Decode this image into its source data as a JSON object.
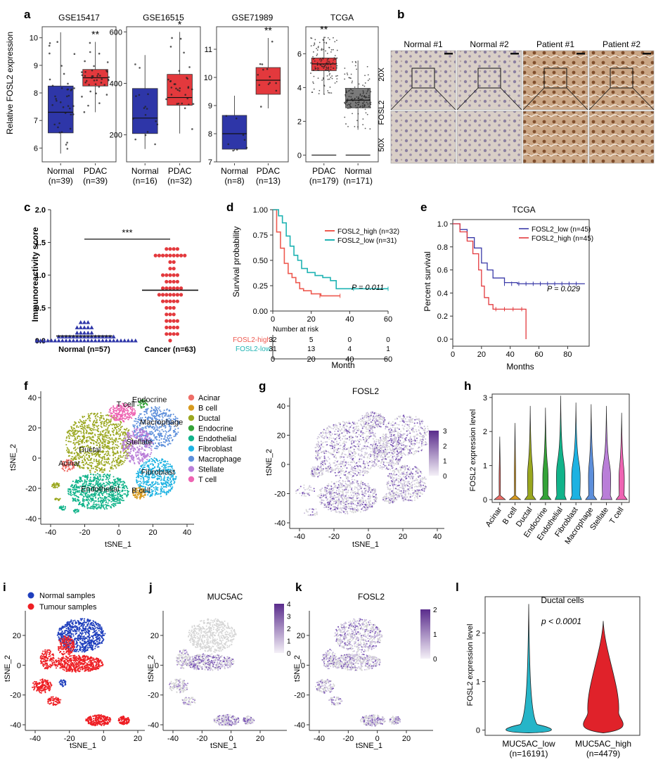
{
  "panel_labels": [
    "a",
    "b",
    "c",
    "d",
    "e",
    "f",
    "g",
    "h",
    "i",
    "j",
    "k",
    "l"
  ],
  "chart_data": [
    {
      "id": "a1",
      "type": "box",
      "title": "GSE15417",
      "ylabel": "Relative FOSL2 expression",
      "ylim": [
        5.5,
        10.4
      ],
      "yticks": [
        6,
        7,
        8,
        9,
        10
      ],
      "categories": [
        "Normal",
        "PDAC"
      ],
      "n_labels": [
        "(n=39)",
        "(n=39)"
      ],
      "colors": [
        "#2e36a8",
        "#e3393d"
      ],
      "boxes": [
        {
          "min": 5.8,
          "q1": 6.55,
          "median": 7.3,
          "q3": 8.25,
          "max": 10.2
        },
        {
          "min": 7.3,
          "q1": 8.25,
          "median": 8.55,
          "q3": 8.85,
          "max": 9.85
        }
      ],
      "significance": [
        "",
        "**"
      ]
    },
    {
      "id": "a2",
      "type": "box",
      "title": "GSE16515",
      "ylim": [
        95,
        620
      ],
      "yticks": [
        200,
        400,
        600
      ],
      "categories": [
        "Normal",
        "PDAC"
      ],
      "n_labels": [
        "(n=16)",
        "(n=32)"
      ],
      "colors": [
        "#2e36a8",
        "#e3393d"
      ],
      "boxes": [
        {
          "min": 145,
          "q1": 205,
          "median": 265,
          "q3": 380,
          "max": 510
        },
        {
          "min": 205,
          "q1": 315,
          "median": 345,
          "q3": 435,
          "max": 600
        }
      ],
      "significance": [
        "",
        "*"
      ]
    },
    {
      "id": "a3",
      "type": "box",
      "title": "GSE71989",
      "ylim": [
        7,
        11.8
      ],
      "yticks": [
        7,
        8,
        9,
        10,
        11
      ],
      "categories": [
        "Normal",
        "PDAC"
      ],
      "n_labels": [
        "(n=8)",
        "(n=13)"
      ],
      "colors": [
        "#2e36a8",
        "#e3393d"
      ],
      "boxes": [
        {
          "min": 7.4,
          "q1": 7.45,
          "median": 8.0,
          "q3": 8.65,
          "max": 9.35
        },
        {
          "min": 8.9,
          "q1": 9.4,
          "median": 9.9,
          "q3": 10.35,
          "max": 11.4
        }
      ],
      "significance": [
        "",
        "**"
      ]
    },
    {
      "id": "a4",
      "type": "box",
      "title": "TCGA",
      "ylim": [
        -0.4,
        7.6
      ],
      "yticks": [
        0,
        2,
        4,
        6
      ],
      "categories": [
        "PDAC",
        "Normal"
      ],
      "n_labels": [
        "(n=179)",
        "(n=171)"
      ],
      "colors": [
        "#e3393d",
        "#7a7a7a"
      ],
      "boxes": [
        {
          "min": 3.6,
          "q1": 5.0,
          "median": 5.4,
          "q3": 5.75,
          "max": 7.0
        },
        {
          "min": 1.5,
          "q1": 2.8,
          "median": 3.25,
          "q3": 3.95,
          "max": 5.6
        }
      ],
      "significance": [
        "**",
        ""
      ]
    },
    {
      "id": "b",
      "type": "image-grid",
      "columns": [
        "Normal #1",
        "Normal #2",
        "Patient #1",
        "Patient #2"
      ],
      "row_labels": [
        "20X",
        "FOSL2",
        "50X"
      ]
    },
    {
      "id": "c",
      "type": "scatter",
      "ylabel": "Immunoreactivity score",
      "ylim": [
        0,
        2.0
      ],
      "yticks": [
        0,
        0.5,
        1.0,
        1.5,
        2.0
      ],
      "categories": [
        "Normal (n=57)",
        "Cancer (n=63)"
      ],
      "colors": [
        "#2e36a8",
        "#e3393d"
      ],
      "means": [
        0.07,
        0.77
      ],
      "significance": "***"
    },
    {
      "id": "d",
      "type": "line",
      "ylabel": "Survival probability",
      "xlabel": "Month",
      "xlim": [
        0,
        60
      ],
      "xticks": [
        0,
        20,
        40,
        60
      ],
      "ylim": [
        0,
        1.0
      ],
      "yticks": [
        "0.00",
        "0.25",
        "0.50",
        "0.75",
        "1.00"
      ],
      "series": [
        {
          "name": "FOSL2_high (n=32)",
          "color": "#ee5a50",
          "x": [
            0,
            2,
            4,
            6,
            8,
            10,
            12,
            14,
            16,
            20,
            25,
            35
          ],
          "y": [
            1.0,
            0.78,
            0.62,
            0.47,
            0.37,
            0.33,
            0.28,
            0.22,
            0.2,
            0.17,
            0.15,
            0.15
          ]
        },
        {
          "name": "FOSL2_low (n=31)",
          "color": "#1fb3b3",
          "x": [
            0,
            3,
            5,
            7,
            9,
            11,
            13,
            15,
            18,
            22,
            26,
            30,
            33,
            40,
            60
          ],
          "y": [
            1.0,
            0.94,
            0.87,
            0.74,
            0.64,
            0.55,
            0.5,
            0.42,
            0.38,
            0.35,
            0.33,
            0.3,
            0.22,
            0.22,
            0.22
          ]
        }
      ],
      "pvalue": "P = 0.011",
      "risk_table": {
        "header": "Number at risk",
        "rows": [
          {
            "name": "FOSL2-high",
            "color": "#ee5a50",
            "values": [
              "32",
              "5",
              "0",
              "0"
            ]
          },
          {
            "name": "FOSL2-low",
            "color": "#1fb3b3",
            "values": [
              "31",
              "13",
              "4",
              "1"
            ]
          }
        ]
      }
    },
    {
      "id": "e",
      "type": "line",
      "title": "TCGA",
      "ylabel": "Percent survival",
      "xlabel": "Months",
      "xlim": [
        0,
        95
      ],
      "xticks": [
        0,
        20,
        40,
        60,
        80
      ],
      "ylim": [
        0,
        1.0
      ],
      "yticks": [
        "0.0",
        "0.2",
        "0.4",
        "0.6",
        "0.8",
        "1.0"
      ],
      "series": [
        {
          "name": "FOSL2_low (n=45)",
          "color": "#3a3aa8",
          "x": [
            0,
            5,
            10,
            15,
            20,
            24,
            28,
            36,
            45,
            60,
            92
          ],
          "y": [
            1.0,
            0.95,
            0.88,
            0.79,
            0.66,
            0.6,
            0.53,
            0.49,
            0.48,
            0.48,
            0.48
          ]
        },
        {
          "name": "FOSL2_high (n=45)",
          "color": "#e3393d",
          "x": [
            0,
            5,
            10,
            14,
            18,
            20,
            22,
            25,
            28,
            36,
            45,
            51,
            51
          ],
          "y": [
            1.0,
            0.93,
            0.85,
            0.74,
            0.6,
            0.46,
            0.36,
            0.3,
            0.26,
            0.26,
            0.26,
            0.26,
            0.0
          ]
        }
      ],
      "pvalue": "P = 0.029"
    },
    {
      "id": "f",
      "type": "scatter",
      "xlabel": "tSNE_1",
      "ylabel": "tSNE_2",
      "xticks": [
        -40,
        -20,
        0,
        20,
        40
      ],
      "yticks": [
        -40,
        -20,
        0,
        20,
        40
      ],
      "legend": [
        {
          "name": "Acinar",
          "color": "#ef6e68"
        },
        {
          "name": "B cell",
          "color": "#d79a1e"
        },
        {
          "name": "Ductal",
          "color": "#9aa71f"
        },
        {
          "name": "Endocrine",
          "color": "#34a338"
        },
        {
          "name": "Endothelial",
          "color": "#11b38a"
        },
        {
          "name": "Fibroblast",
          "color": "#1cb2e2"
        },
        {
          "name": "Macrophage",
          "color": "#5d8fdb"
        },
        {
          "name": "Stellate",
          "color": "#b97ed8"
        },
        {
          "name": "T cell",
          "color": "#ee64b2"
        }
      ],
      "cluster_labels": [
        "T cell",
        "Endocrine",
        "Macrophage",
        "Stellate",
        "Ductal",
        "Acinar",
        "Fibroblast",
        "Endothelial",
        "B cell"
      ]
    },
    {
      "id": "g",
      "type": "scatter",
      "title": "FOSL2",
      "xlabel": "tSNE_1",
      "ylabel": "tSNE_2",
      "xticks": [
        -40,
        -20,
        0,
        20,
        40
      ],
      "yticks": [
        -40,
        -20,
        0,
        20,
        40
      ],
      "colorbar_ticks": [
        "0",
        "1",
        "2",
        "3"
      ]
    },
    {
      "id": "h",
      "type": "violin",
      "ylabel": "FOSL2 expression level",
      "ylim": [
        0,
        3.1
      ],
      "yticks": [
        0,
        1,
        2,
        3
      ],
      "categories": [
        "Acinar",
        "B cell",
        "Ductal",
        "Endocrine",
        "Endothelial",
        "Fibroblast",
        "Macrophage",
        "Stellate",
        "T cell"
      ],
      "max_values": [
        1.85,
        2.25,
        2.75,
        2.7,
        3.05,
        2.85,
        2.8,
        2.75,
        2.55
      ]
    },
    {
      "id": "i",
      "type": "scatter",
      "xlabel": "tSNE_1",
      "ylabel": "tSNE_2",
      "xticks": [
        -40,
        -20,
        0,
        20
      ],
      "yticks": [
        -40,
        -20,
        0,
        20
      ],
      "legend": [
        {
          "name": "Normal samples",
          "color": "#1f3fbd"
        },
        {
          "name": "Tumour samples",
          "color": "#ee1f24"
        }
      ]
    },
    {
      "id": "j",
      "type": "scatter",
      "title": "MUC5AC",
      "xlabel": "tSNE_1",
      "ylabel": "tSNE_2",
      "xticks": [
        -40,
        -20,
        0,
        20
      ],
      "yticks": [
        -40,
        -20,
        0,
        20
      ],
      "colorbar_ticks": [
        "0",
        "1",
        "2",
        "3",
        "4"
      ]
    },
    {
      "id": "k",
      "type": "scatter",
      "title": "FOSL2",
      "xlabel": "tSNE_1",
      "ylabel": "tSNE_2",
      "xticks": [
        -40,
        -20,
        0,
        20
      ],
      "yticks": [
        -40,
        -20,
        0,
        20
      ],
      "colorbar_ticks": [
        "0",
        "1",
        "2"
      ]
    },
    {
      "id": "l",
      "type": "violin",
      "title": "Ductal cells",
      "ylabel": "FOSL2 expression level",
      "ylim": [
        -0.05,
        2.75
      ],
      "yticks": [
        0,
        1,
        2
      ],
      "categories": [
        "MUC5AC_low",
        "MUC5AC_high"
      ],
      "n_labels": [
        "(n=16191)",
        "(n=4479)"
      ],
      "colors": [
        "#26b5c8",
        "#e0222a"
      ],
      "max_values": [
        2.6,
        2.25
      ],
      "pvalue": "p < 0.0001"
    }
  ]
}
